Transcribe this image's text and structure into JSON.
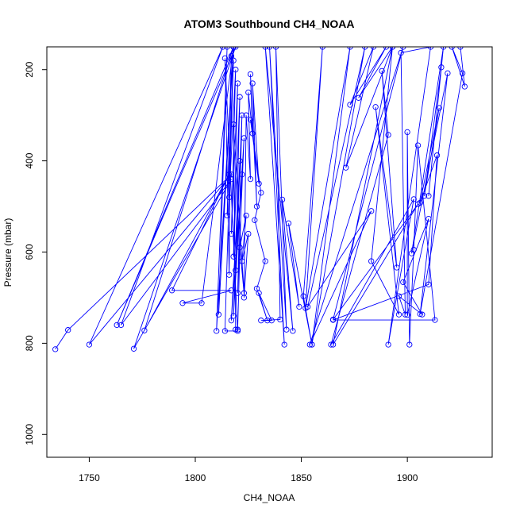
{
  "chart_data": {
    "type": "line",
    "title": "ATOM3 Southbound CH4_NOAA",
    "xlabel": "CH4_NOAA",
    "ylabel": "Pressure (mbar)",
    "xlim": [
      1730,
      1940
    ],
    "ylim": [
      1050,
      150
    ],
    "y_axis_inverted": true,
    "x_ticks": [
      1750,
      1800,
      1850,
      1900
    ],
    "y_ticks": [
      200,
      400,
      600,
      800,
      1000
    ],
    "grid": false,
    "legend": "none",
    "series_color": "#0000ff",
    "marker": "open-circle",
    "series": [
      {
        "values": [
          [
            1734,
            813
          ],
          [
            1740,
            771
          ],
          [
            1817,
            430
          ],
          [
            1750,
            803
          ],
          [
            1813,
            150
          ],
          [
            1765,
            760
          ],
          [
            1817,
            440
          ],
          [
            1771,
            812
          ],
          [
            1819,
            150
          ],
          [
            1763,
            760
          ],
          [
            1818,
            150
          ],
          [
            1776,
            772
          ],
          [
            1816,
            430
          ],
          [
            1789,
            684
          ],
          [
            1817,
            684
          ],
          [
            1794,
            712
          ],
          [
            1803,
            712
          ],
          [
            1818,
            150
          ],
          [
            1811,
            737
          ],
          [
            1815,
            150
          ],
          [
            1810,
            773
          ],
          [
            1818,
            150
          ],
          [
            1814,
            773
          ],
          [
            1820,
            773
          ],
          [
            1814,
            175
          ],
          [
            1816,
            650
          ],
          [
            1817,
            170
          ],
          [
            1815,
            520
          ],
          [
            1818,
            180
          ],
          [
            1816,
            480
          ],
          [
            1819,
            200
          ],
          [
            1817,
            560
          ],
          [
            1820,
            230
          ],
          [
            1818,
            610
          ],
          [
            1821,
            260
          ],
          [
            1819,
            640
          ],
          [
            1822,
            300
          ],
          [
            1820,
            690
          ],
          [
            1823,
            350
          ],
          [
            1818,
            740
          ],
          [
            1821,
            400
          ],
          [
            1817,
            750
          ],
          [
            1822,
            430
          ],
          [
            1820,
            770
          ],
          [
            1819,
            770
          ],
          [
            1818,
            320
          ],
          [
            1823,
            690
          ],
          [
            1821,
            590
          ],
          [
            1824,
            520
          ],
          [
            1822,
            620
          ],
          [
            1825,
            560
          ],
          [
            1823,
            700
          ],
          [
            1824,
            300
          ],
          [
            1826,
            440
          ],
          [
            1825,
            250
          ],
          [
            1827,
            340
          ],
          [
            1826,
            210
          ],
          [
            1829,
            500
          ],
          [
            1827,
            230
          ],
          [
            1830,
            450
          ],
          [
            1826,
            310
          ],
          [
            1831,
            470
          ],
          [
            1828,
            530
          ],
          [
            1833,
            620
          ],
          [
            1829,
            680
          ],
          [
            1834,
            750
          ],
          [
            1830,
            690
          ],
          [
            1836,
            750
          ],
          [
            1831,
            750
          ],
          [
            1840,
            748
          ],
          [
            1838,
            150
          ],
          [
            1843,
            770
          ],
          [
            1835,
            150
          ],
          [
            1842,
            803
          ],
          [
            1833,
            150
          ],
          [
            1846,
            773
          ],
          [
            1841,
            485
          ],
          [
            1849,
            720
          ],
          [
            1844,
            537
          ],
          [
            1855,
            803
          ],
          [
            1851,
            697
          ],
          [
            1860,
            150
          ],
          [
            1852,
            723
          ],
          [
            1873,
            150
          ],
          [
            1855,
            803
          ],
          [
            1880,
            150
          ],
          [
            1853,
            720
          ],
          [
            1883,
            510
          ],
          [
            1854,
            803
          ],
          [
            1898,
            150
          ],
          [
            1865,
            748
          ],
          [
            1905,
            495
          ],
          [
            1865,
            803
          ],
          [
            1893,
            150
          ],
          [
            1871,
            415
          ],
          [
            1884,
            150
          ],
          [
            1873,
            277
          ],
          [
            1890,
            150
          ],
          [
            1877,
            262
          ],
          [
            1893,
            150
          ],
          [
            1883,
            620
          ],
          [
            1896,
            737
          ],
          [
            1885,
            282
          ],
          [
            1895,
            634
          ],
          [
            1888,
            203
          ],
          [
            1891,
            343
          ],
          [
            1864,
            803
          ],
          [
            1903,
            484
          ],
          [
            1891,
            803
          ],
          [
            1911,
            150
          ],
          [
            1897,
            163
          ],
          [
            1899,
            737
          ],
          [
            1896,
            697
          ],
          [
            1907,
            737
          ],
          [
            1898,
            666
          ],
          [
            1910,
            527
          ],
          [
            1900,
            738
          ],
          [
            1900,
            337
          ],
          [
            1901,
            803
          ],
          [
            1903,
            595
          ],
          [
            1905,
            366
          ],
          [
            1913,
            749
          ],
          [
            1865,
            749
          ],
          [
            1910,
            671
          ],
          [
            1914,
            388
          ],
          [
            1906,
            492
          ],
          [
            1915,
            284
          ],
          [
            1908,
            477
          ],
          [
            1916,
            195
          ],
          [
            1910,
            477
          ],
          [
            1917,
            150
          ],
          [
            1902,
            603
          ],
          [
            1919,
            208
          ],
          [
            1906,
            736
          ],
          [
            1926,
            208
          ],
          [
            1921,
            150
          ],
          [
            1927,
            237
          ],
          [
            1925,
            150
          ]
        ]
      }
    ]
  }
}
